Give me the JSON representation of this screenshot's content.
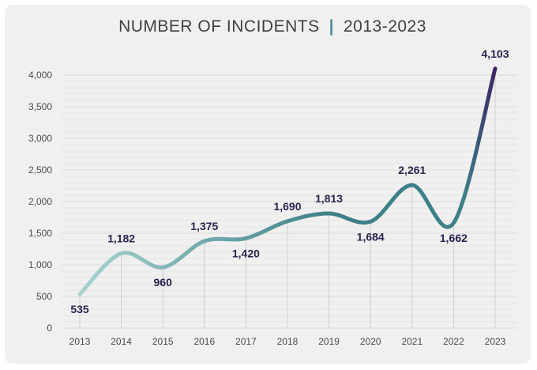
{
  "chart_title": "NUMBER OF INCIDENTS",
  "chart_title_sep": "|",
  "chart_subtitle": "2013-2023",
  "colors": {
    "background": "#f0f0f0",
    "gridline": "#dcdcdc",
    "line_start": "#a8d4cf",
    "line_mid": "#3e8088",
    "line_end": "#3b1f5e",
    "label": "#2a2350"
  },
  "chart_data": {
    "type": "line",
    "title": "NUMBER OF INCIDENTS | 2013-2023",
    "xlabel": "",
    "ylabel": "",
    "categories": [
      "2013",
      "2014",
      "2015",
      "2016",
      "2017",
      "2018",
      "2019",
      "2020",
      "2021",
      "2022",
      "2023"
    ],
    "values": [
      535,
      1182,
      960,
      1375,
      1420,
      1690,
      1813,
      1684,
      2261,
      1662,
      4103
    ],
    "data_labels": [
      "535",
      "1,182",
      "960",
      "1,375",
      "1,420",
      "1,690",
      "1,813",
      "1,684",
      "2,261",
      "1,662",
      "4,103"
    ],
    "label_position": [
      "below",
      "above",
      "below",
      "above",
      "below",
      "above",
      "above",
      "below",
      "above",
      "below",
      "above"
    ],
    "y_ticks": [
      0,
      500,
      1000,
      1500,
      2000,
      2500,
      3000,
      3500,
      4000
    ],
    "y_tick_labels": [
      "0",
      "500",
      "1,000",
      "1,500",
      "2,000",
      "2,500",
      "3,000",
      "3,500",
      "4,000"
    ],
    "ylim": [
      0,
      4000
    ],
    "grid": true,
    "legend": "none",
    "smooth": true
  }
}
